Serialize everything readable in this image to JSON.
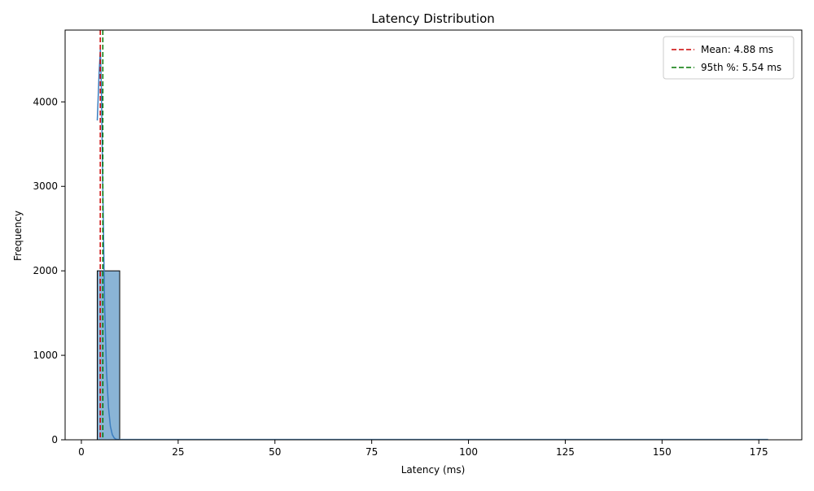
{
  "chart_data": {
    "type": "bar",
    "title": "Latency Distribution",
    "xlabel": "Latency (ms)",
    "ylabel": "Frequency",
    "xlim": [
      -4.2,
      186.1
    ],
    "ylim": [
      0,
      4850
    ],
    "xticks": [
      0,
      25,
      50,
      75,
      100,
      125,
      150,
      175
    ],
    "yticks": [
      0,
      1000,
      2000,
      3000,
      4000
    ],
    "grid": false,
    "legend_position": "top-right",
    "histogram": {
      "bins": [
        {
          "x0": 4.1,
          "x1": 9.9,
          "count": 2000
        },
        {
          "x0": 9.9,
          "x1": 177.4,
          "count": 0
        }
      ],
      "fill": "#8ab4d6",
      "edge": "#000000"
    },
    "kde": {
      "color": "#3b7dbf",
      "x": [
        4.1,
        4.6,
        4.9,
        5.2,
        5.5,
        6.0,
        6.5,
        7.0,
        7.5,
        8.0,
        8.5,
        9.0,
        10.0,
        15,
        25,
        50,
        100,
        177.4
      ],
      "y": [
        3780,
        4350,
        4620,
        4100,
        3100,
        1600,
        800,
        380,
        160,
        60,
        20,
        6,
        1,
        0,
        0,
        0,
        0,
        0
      ]
    },
    "reference_lines": [
      {
        "name": "Mean: 4.88 ms",
        "x": 4.88,
        "color": "#cc0000",
        "style": "dashed"
      },
      {
        "name": "95th %: 5.54 ms",
        "x": 5.54,
        "color": "#007700",
        "style": "dashed"
      }
    ]
  }
}
